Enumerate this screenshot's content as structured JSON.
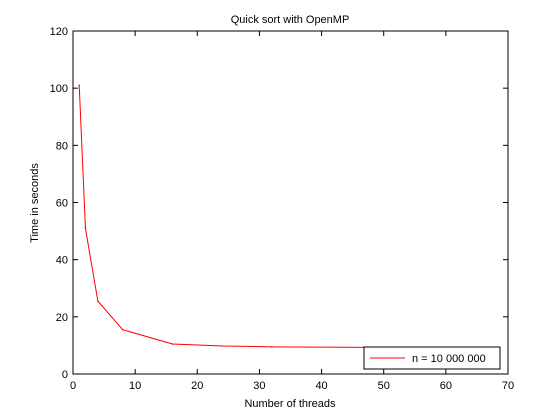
{
  "chart_data": {
    "type": "line",
    "title": "Quick sort with OpenMP",
    "xlabel": "Number of threads",
    "ylabel": "Time in seconds",
    "xlim": [
      0,
      70
    ],
    "ylim": [
      0,
      120
    ],
    "x_ticks": [
      0,
      10,
      20,
      30,
      40,
      50,
      60,
      70
    ],
    "y_ticks": [
      0,
      20,
      40,
      60,
      80,
      100,
      120
    ],
    "grid": false,
    "legend_position": "bottom-right",
    "series": [
      {
        "name": "n = 10 000 000",
        "color": "#ff0000",
        "x": [
          1,
          2,
          4,
          8,
          16,
          24,
          32,
          48
        ],
        "y": [
          101,
          51,
          25.5,
          15.5,
          10.5,
          9.8,
          9.5,
          9.3
        ]
      }
    ]
  }
}
